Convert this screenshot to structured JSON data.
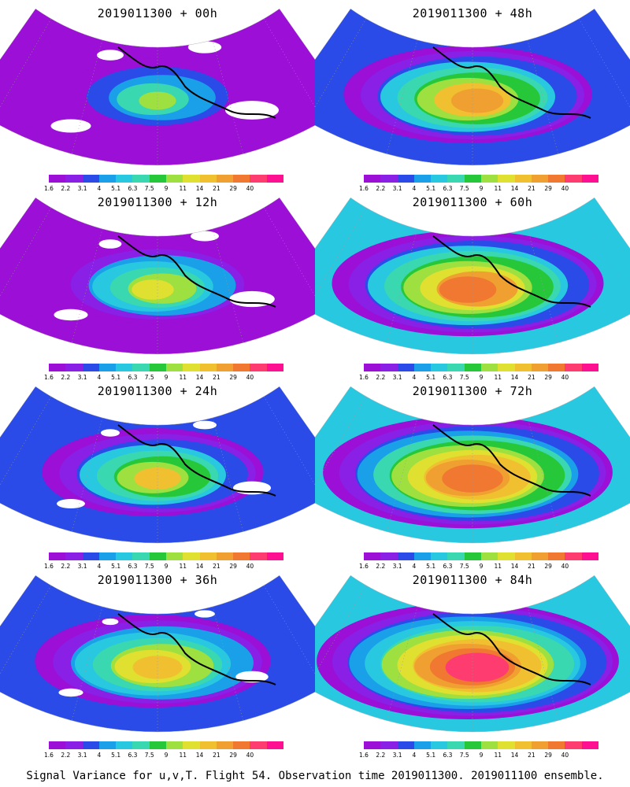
{
  "panels": [
    {
      "title": "2019011300 + 00h",
      "intensity": 0.15
    },
    {
      "title": "2019011300 + 48h",
      "intensity": 0.55
    },
    {
      "title": "2019011300 + 12h",
      "intensity": 0.28
    },
    {
      "title": "2019011300 + 60h",
      "intensity": 0.68
    },
    {
      "title": "2019011300 + 24h",
      "intensity": 0.4
    },
    {
      "title": "2019011300 + 72h",
      "intensity": 0.78
    },
    {
      "title": "2019011300 + 36h",
      "intensity": 0.48
    },
    {
      "title": "2019011300 + 84h",
      "intensity": 0.85
    }
  ],
  "colorbar": {
    "colors": [
      "#9b0fd6",
      "#8a1fe6",
      "#2a4be8",
      "#1aa0e8",
      "#28c8e0",
      "#3ad8b0",
      "#26c83a",
      "#9ee040",
      "#e0e030",
      "#f0c030",
      "#f0a030",
      "#f07830",
      "#ff3c70",
      "#ff1090"
    ],
    "labels": [
      "1.6",
      "2.2",
      "3.1",
      "4",
      "5.1",
      "6.3",
      "7.5",
      "9",
      "11",
      "14",
      "21",
      "29",
      "40"
    ]
  },
  "footer": "Signal Variance for u,v,T. Flight 54. Observation time 2019011300. 2019011100 ensemble."
}
